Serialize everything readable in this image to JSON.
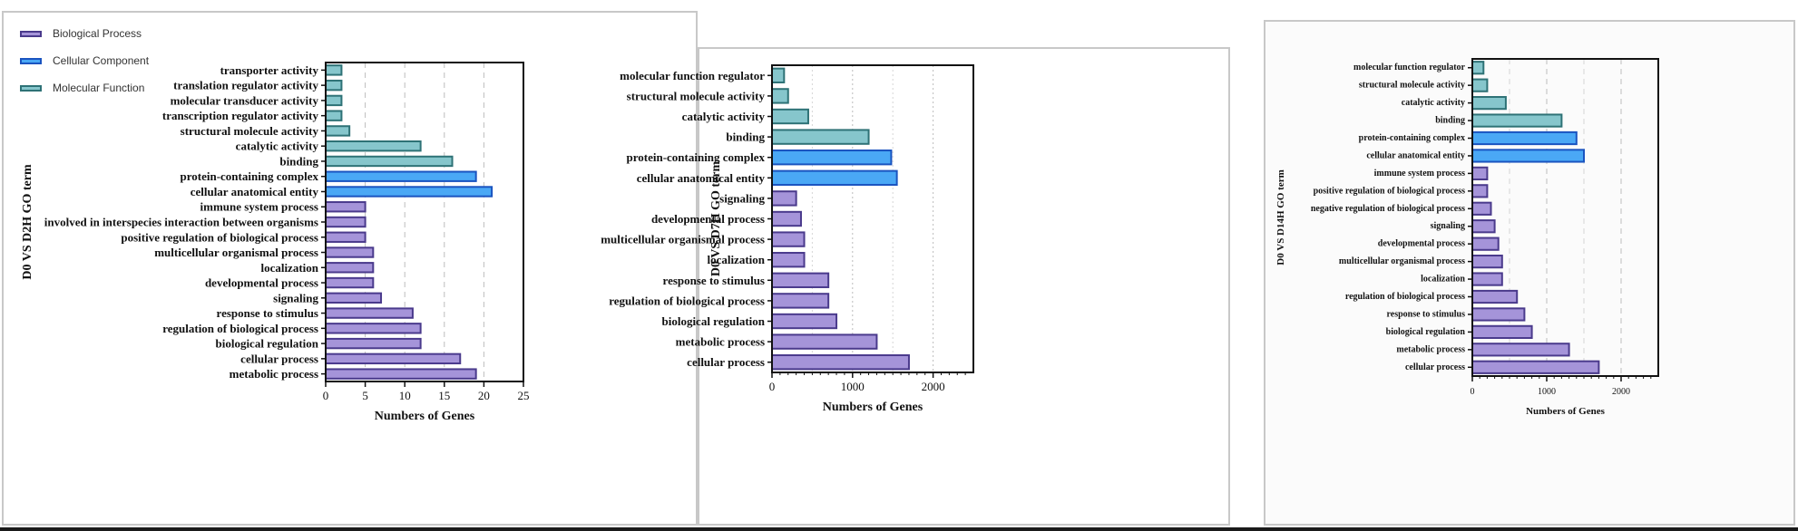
{
  "legend": {
    "items": [
      {
        "label": "Biological Process",
        "fill": "#a594d9",
        "stroke": "#4a3a8c"
      },
      {
        "label": "Cellular Component",
        "fill": "#4aa8f5",
        "stroke": "#1a54c0"
      },
      {
        "label": "Molecular Function",
        "fill": "#86c6cc",
        "stroke": "#2e7276"
      }
    ]
  },
  "chart_data": [
    {
      "type": "bar",
      "orientation": "horizontal",
      "ylabel": "D0 VS D2H GO term",
      "xlabel": "Numbers of Genes",
      "xlim": [
        0,
        25
      ],
      "xticks": [
        0,
        5,
        10,
        15,
        20,
        25
      ],
      "grid": "vertical dashed",
      "legend_position": "top-left",
      "categories": [
        "transporter activity",
        "translation regulator activity",
        "molecular transducer activity",
        "transcription regulator activity",
        "structural molecule activity",
        "catalytic activity",
        "binding",
        "protein-containing complex",
        "cellular anatomical entity",
        "immune system process",
        "involved in interspecies interaction between organisms",
        "positive regulation of biological process",
        "multicellular organismal process",
        "localization",
        "developmental process",
        "signaling",
        "response to stimulus",
        "regulation of biological process",
        "biological regulation",
        "cellular process",
        "metabolic process"
      ],
      "values": [
        2,
        2,
        2,
        2,
        3,
        12,
        16,
        19,
        21,
        5,
        5,
        5,
        6,
        6,
        6,
        7,
        11,
        12,
        12,
        17,
        19
      ],
      "groups": [
        "Molecular Function",
        "Molecular Function",
        "Molecular Function",
        "Molecular Function",
        "Molecular Function",
        "Molecular Function",
        "Molecular Function",
        "Cellular Component",
        "Cellular Component",
        "Biological Process",
        "Biological Process",
        "Biological Process",
        "Biological Process",
        "Biological Process",
        "Biological Process",
        "Biological Process",
        "Biological Process",
        "Biological Process",
        "Biological Process",
        "Biological Process",
        "Biological Process"
      ]
    },
    {
      "type": "bar",
      "orientation": "horizontal",
      "ylabel": "D0 VS D7H GO term",
      "xlabel": "Numbers of Genes",
      "xlim": [
        0,
        2500
      ],
      "xticks": [
        0,
        1000,
        2000
      ],
      "grid": "vertical dotted",
      "categories": [
        "molecular function regulator",
        "structural molecule activity",
        "catalytic activity",
        "binding",
        "protein-containing complex",
        "cellular anatomical entity",
        "signaling",
        "developmental process",
        "multicellular organismal process",
        "localization",
        "response to stimulus",
        "regulation of biological process",
        "biological regulation",
        "metabolic process",
        "cellular process"
      ],
      "values": [
        150,
        200,
        450,
        1200,
        1480,
        1550,
        300,
        360,
        400,
        400,
        700,
        700,
        800,
        1300,
        1700
      ],
      "groups": [
        "Molecular Function",
        "Molecular Function",
        "Molecular Function",
        "Molecular Function",
        "Cellular Component",
        "Cellular Component",
        "Biological Process",
        "Biological Process",
        "Biological Process",
        "Biological Process",
        "Biological Process",
        "Biological Process",
        "Biological Process",
        "Biological Process",
        "Biological Process"
      ]
    },
    {
      "type": "bar",
      "orientation": "horizontal",
      "ylabel": "D0 VS D14H GO term",
      "xlabel": "Numbers of Genes",
      "xlim": [
        0,
        2500
      ],
      "xticks": [
        0,
        1000,
        2000
      ],
      "grid": "vertical dashed",
      "categories": [
        "molecular function regulator",
        "structural molecule activity",
        "catalytic activity",
        "binding",
        "protein-containing complex",
        "cellular anatomical entity",
        "immune system process",
        "positive regulation of biological process",
        "negative regulation of biological process",
        "signaling",
        "developmental process",
        "multicellular organismal process",
        "localization",
        "regulation of biological process",
        "response to stimulus",
        "biological regulation",
        "metabolic process",
        "cellular process"
      ],
      "values": [
        150,
        200,
        450,
        1200,
        1400,
        1500,
        200,
        200,
        250,
        300,
        350,
        400,
        400,
        600,
        700,
        800,
        1300,
        1700
      ],
      "groups": [
        "Molecular Function",
        "Molecular Function",
        "Molecular Function",
        "Molecular Function",
        "Cellular Component",
        "Cellular Component",
        "Biological Process",
        "Biological Process",
        "Biological Process",
        "Biological Process",
        "Biological Process",
        "Biological Process",
        "Biological Process",
        "Biological Process",
        "Biological Process",
        "Biological Process",
        "Biological Process",
        "Biological Process"
      ]
    }
  ]
}
